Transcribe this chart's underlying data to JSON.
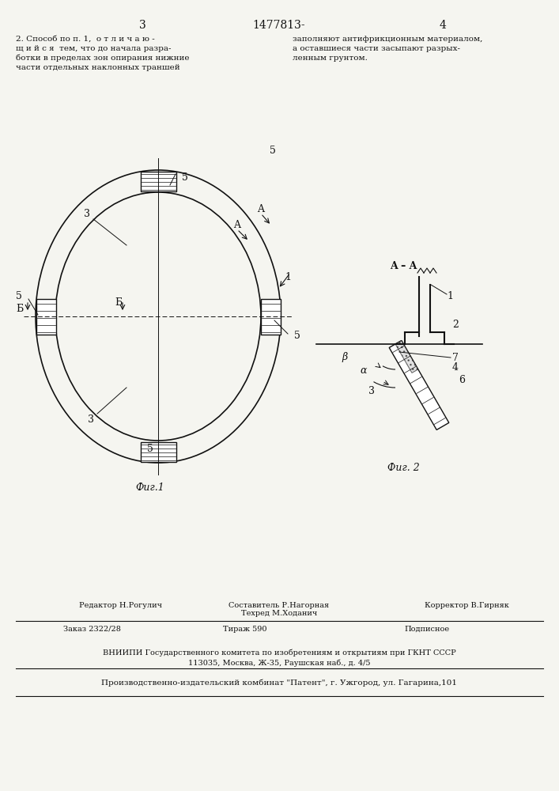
{
  "bg_color": "#f5f5f0",
  "line_color": "#111111",
  "header_text": "1477813-",
  "page_left": "3",
  "page_right": "4",
  "text_left": "2. Способ по п. 1,  о т л и ч а ю -\nщ и й с я  тем, что до начала разра-\nботки в пределах зон опирания нижние\nчасти отдельных наклонных траншей",
  "text_right": "заполняют антифрикционным материалом,\nа оставшиеся части засыпают разрых-\nленным грунтом.",
  "fig1_label": "Фиг.1",
  "fig2_label": "Фиг. 2",
  "fig2_title": "A – A",
  "bottom_line1": "Редактор Н.Рогулич",
  "bottom_line2": "Заказ 2322/28",
  "bottom_line3": "ВНИИПИ Государственного комитета по изобретениям и открытиям при ГКНТ СССР",
  "bottom_line4": "113035, Москва, Ж-35, Раушская наб., д. 4/5",
  "bottom_line5": "Производственно-издательский комбинат \"Патент\", г. Ужгород, ул. Гагарина,101",
  "составитель": "Составитель Р.Нагорная",
  "техред": "Техред М.Ходанич",
  "корректор": "Корректор В.Гирняк",
  "тираж": "Тираж 590",
  "подписное": "Подписное"
}
